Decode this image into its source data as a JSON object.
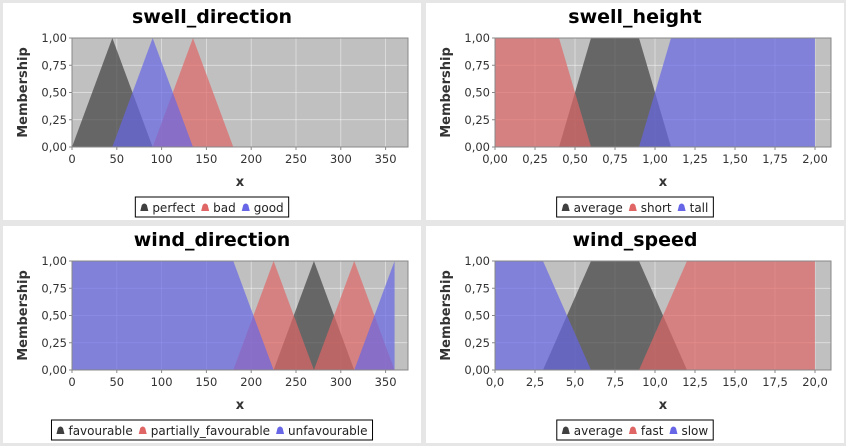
{
  "chart_data": [
    {
      "type": "area",
      "title": "swell_direction",
      "xlabel": "x",
      "ylabel": "Membership",
      "xlim": [
        0,
        375
      ],
      "ylim": [
        0,
        1
      ],
      "xticks": [
        0,
        50,
        100,
        150,
        200,
        250,
        300,
        350
      ],
      "xtick_labels": [
        "0",
        "50",
        "100",
        "150",
        "200",
        "250",
        "300",
        "350"
      ],
      "yticks": [
        0,
        0.25,
        0.5,
        0.75,
        1
      ],
      "ytick_labels": [
        "0,00",
        "0,25",
        "0,50",
        "0,75",
        "1,00"
      ],
      "grid": true,
      "legend_position": "bottom",
      "series": [
        {
          "name": "perfect",
          "color": "#404040",
          "points": [
            [
              0,
              0
            ],
            [
              45,
              1
            ],
            [
              90,
              0
            ]
          ]
        },
        {
          "name": "bad",
          "color": "#e06666",
          "points": [
            [
              90,
              0
            ],
            [
              135,
              1
            ],
            [
              180,
              0
            ]
          ]
        },
        {
          "name": "good",
          "color": "#6666e6",
          "points": [
            [
              45,
              0
            ],
            [
              90,
              1
            ],
            [
              135,
              0
            ]
          ]
        }
      ]
    },
    {
      "type": "area",
      "title": "swell_height",
      "xlabel": "x",
      "ylabel": "Membership",
      "xlim": [
        0,
        2.1
      ],
      "ylim": [
        0,
        1
      ],
      "xticks": [
        0,
        0.25,
        0.5,
        0.75,
        1,
        1.25,
        1.5,
        1.75,
        2
      ],
      "xtick_labels": [
        "0,00",
        "0,25",
        "0,50",
        "0,75",
        "1,00",
        "1,25",
        "1,50",
        "1,75",
        "2,00"
      ],
      "yticks": [
        0,
        0.25,
        0.5,
        0.75,
        1
      ],
      "ytick_labels": [
        "0,00",
        "0,25",
        "0,50",
        "0,75",
        "1,00"
      ],
      "grid": true,
      "legend_position": "bottom",
      "series": [
        {
          "name": "average",
          "color": "#404040",
          "points": [
            [
              0.4,
              0
            ],
            [
              0.6,
              1
            ],
            [
              0.9,
              1
            ],
            [
              1.1,
              0
            ]
          ]
        },
        {
          "name": "short",
          "color": "#e06666",
          "points": [
            [
              0,
              0
            ],
            [
              0,
              1
            ],
            [
              0.4,
              1
            ],
            [
              0.6,
              0
            ]
          ]
        },
        {
          "name": "tall",
          "color": "#6666e6",
          "points": [
            [
              0.9,
              0
            ],
            [
              1.1,
              1
            ],
            [
              2,
              1
            ],
            [
              2,
              0
            ]
          ]
        }
      ]
    },
    {
      "type": "area",
      "title": "wind_direction",
      "xlabel": "x",
      "ylabel": "Membership",
      "xlim": [
        0,
        375
      ],
      "ylim": [
        0,
        1
      ],
      "xticks": [
        0,
        50,
        100,
        150,
        200,
        250,
        300,
        350
      ],
      "xtick_labels": [
        "0",
        "50",
        "100",
        "150",
        "200",
        "250",
        "300",
        "350"
      ],
      "yticks": [
        0,
        0.25,
        0.5,
        0.75,
        1
      ],
      "ytick_labels": [
        "0,00",
        "0,25",
        "0,50",
        "0,75",
        "1,00"
      ],
      "grid": true,
      "legend_position": "bottom",
      "series": [
        {
          "name": "favourable",
          "color": "#404040",
          "points": [
            [
              225,
              0
            ],
            [
              270,
              1
            ],
            [
              315,
              0
            ]
          ]
        },
        {
          "name": "partially_favourable",
          "color": "#e06666",
          "points": [
            [
              180,
              0
            ],
            [
              225,
              1
            ],
            [
              270,
              0
            ],
            [
              270,
              0
            ],
            [
              315,
              1
            ],
            [
              360,
              0
            ]
          ]
        },
        {
          "name": "unfavourable",
          "color": "#6666e6",
          "points": [
            [
              0,
              0
            ],
            [
              0,
              1
            ],
            [
              180,
              1
            ],
            [
              225,
              0
            ],
            [
              315,
              0
            ],
            [
              360,
              1
            ],
            [
              360,
              0
            ]
          ]
        }
      ]
    },
    {
      "type": "area",
      "title": "wind_speed",
      "xlabel": "x",
      "ylabel": "Membership",
      "xlim": [
        0,
        21
      ],
      "ylim": [
        0,
        1
      ],
      "xticks": [
        0,
        2.5,
        5,
        7.5,
        10,
        12.5,
        15,
        17.5,
        20
      ],
      "xtick_labels": [
        "0,0",
        "2,5",
        "5,0",
        "7,5",
        "10,0",
        "12,5",
        "15,0",
        "17,5",
        "20,0"
      ],
      "yticks": [
        0,
        0.25,
        0.5,
        0.75,
        1
      ],
      "ytick_labels": [
        "0,00",
        "0,25",
        "0,50",
        "0,75",
        "1,00"
      ],
      "grid": true,
      "legend_position": "bottom",
      "series": [
        {
          "name": "average",
          "color": "#404040",
          "points": [
            [
              3,
              0
            ],
            [
              6,
              1
            ],
            [
              9,
              1
            ],
            [
              12,
              0
            ]
          ]
        },
        {
          "name": "fast",
          "color": "#e06666",
          "points": [
            [
              9,
              0
            ],
            [
              12,
              1
            ],
            [
              20,
              1
            ],
            [
              20,
              0
            ]
          ]
        },
        {
          "name": "slow",
          "color": "#6666e6",
          "points": [
            [
              0,
              0
            ],
            [
              0,
              1
            ],
            [
              3,
              1
            ],
            [
              6,
              0
            ]
          ]
        }
      ]
    }
  ]
}
